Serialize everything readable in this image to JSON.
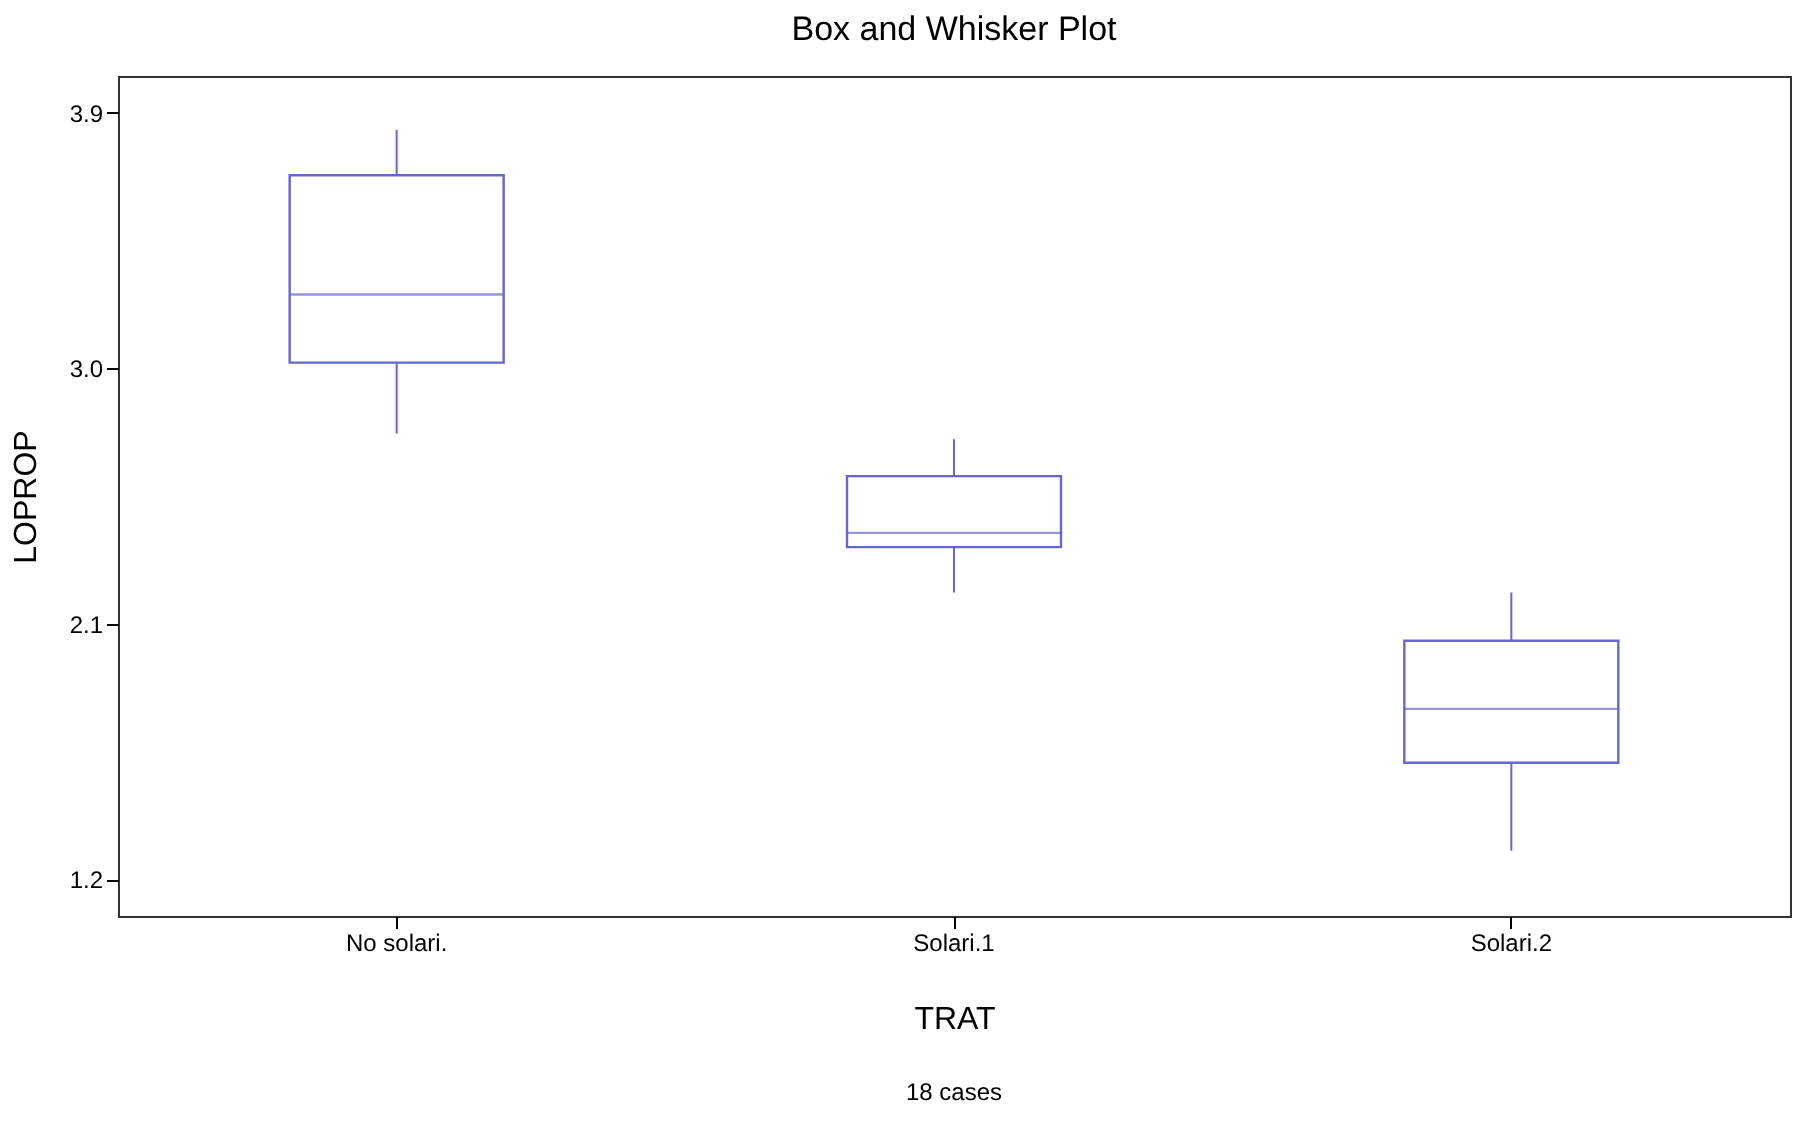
{
  "chart_data": {
    "type": "box",
    "title": "Box and Whisker Plot",
    "xlabel": "TRAT",
    "ylabel": "LOPROP",
    "annotations": [
      "18 cases"
    ],
    "categories": [
      "No solari.",
      "Solari.1",
      "Solari.2"
    ],
    "boxes": [
      {
        "low": 2.77,
        "q1": 3.02,
        "median": 3.26,
        "q3": 3.68,
        "high": 3.84
      },
      {
        "low": 2.21,
        "q1": 2.37,
        "median": 2.42,
        "q3": 2.62,
        "high": 2.75
      },
      {
        "low": 1.3,
        "q1": 1.61,
        "median": 1.8,
        "q3": 2.04,
        "high": 2.21
      }
    ],
    "color": "#6666cc",
    "ylim": [
      1.07,
      4.03
    ],
    "yticks": [
      {
        "value": 1.2,
        "label": "1.2"
      },
      {
        "value": 2.1,
        "label": "2.1"
      },
      {
        "value": 3,
        "label": "3.0"
      },
      {
        "value": 3.9,
        "label": "3.9"
      }
    ],
    "grid": false
  }
}
